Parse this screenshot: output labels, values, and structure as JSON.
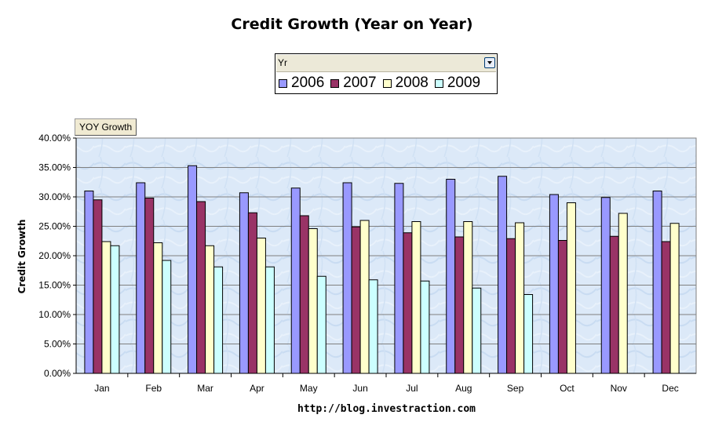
{
  "header": {
    "title": "Credit Growth (Year on Year)"
  },
  "pivot": {
    "field_label": "Yr",
    "dropdown_icon": "chevron-down-icon"
  },
  "series_field_button": "YOY Growth",
  "footer_url": "http://blog.investraction.com",
  "colors": {
    "2006": "#9999ff",
    "2007": "#993366",
    "2008": "#ffffcc",
    "2009": "#ccffff",
    "plot_bg": "#dbe8f7",
    "gridline": "#808080"
  },
  "chart_data": {
    "type": "bar",
    "title": "Credit Growth (Year on Year)",
    "ylabel": "Credit Growth",
    "xlabel": "",
    "ylim": [
      0,
      40
    ],
    "yticks": [
      "0.00%",
      "5.00%",
      "10.00%",
      "15.00%",
      "20.00%",
      "25.00%",
      "30.00%",
      "35.00%",
      "40.00%"
    ],
    "grid": true,
    "legend_position": "top-center",
    "categories": [
      "Jan",
      "Feb",
      "Mar",
      "Apr",
      "May",
      "Jun",
      "Jul",
      "Aug",
      "Sep",
      "Oct",
      "Nov",
      "Dec"
    ],
    "series": [
      {
        "name": "2006",
        "values": [
          31.0,
          32.4,
          35.3,
          30.7,
          31.5,
          32.4,
          32.3,
          33.0,
          33.5,
          30.4,
          29.9,
          31.0
        ]
      },
      {
        "name": "2007",
        "values": [
          29.5,
          29.8,
          29.2,
          27.3,
          26.8,
          24.9,
          23.9,
          23.2,
          22.9,
          22.6,
          23.3,
          22.4
        ]
      },
      {
        "name": "2008",
        "values": [
          22.4,
          22.2,
          21.7,
          23.0,
          24.6,
          26.0,
          25.8,
          25.8,
          25.6,
          29.0,
          27.2,
          25.5
        ]
      },
      {
        "name": "2009",
        "values": [
          21.7,
          19.2,
          18.1,
          18.1,
          16.5,
          15.9,
          15.7,
          14.5,
          13.4,
          null,
          null,
          null
        ]
      }
    ]
  }
}
